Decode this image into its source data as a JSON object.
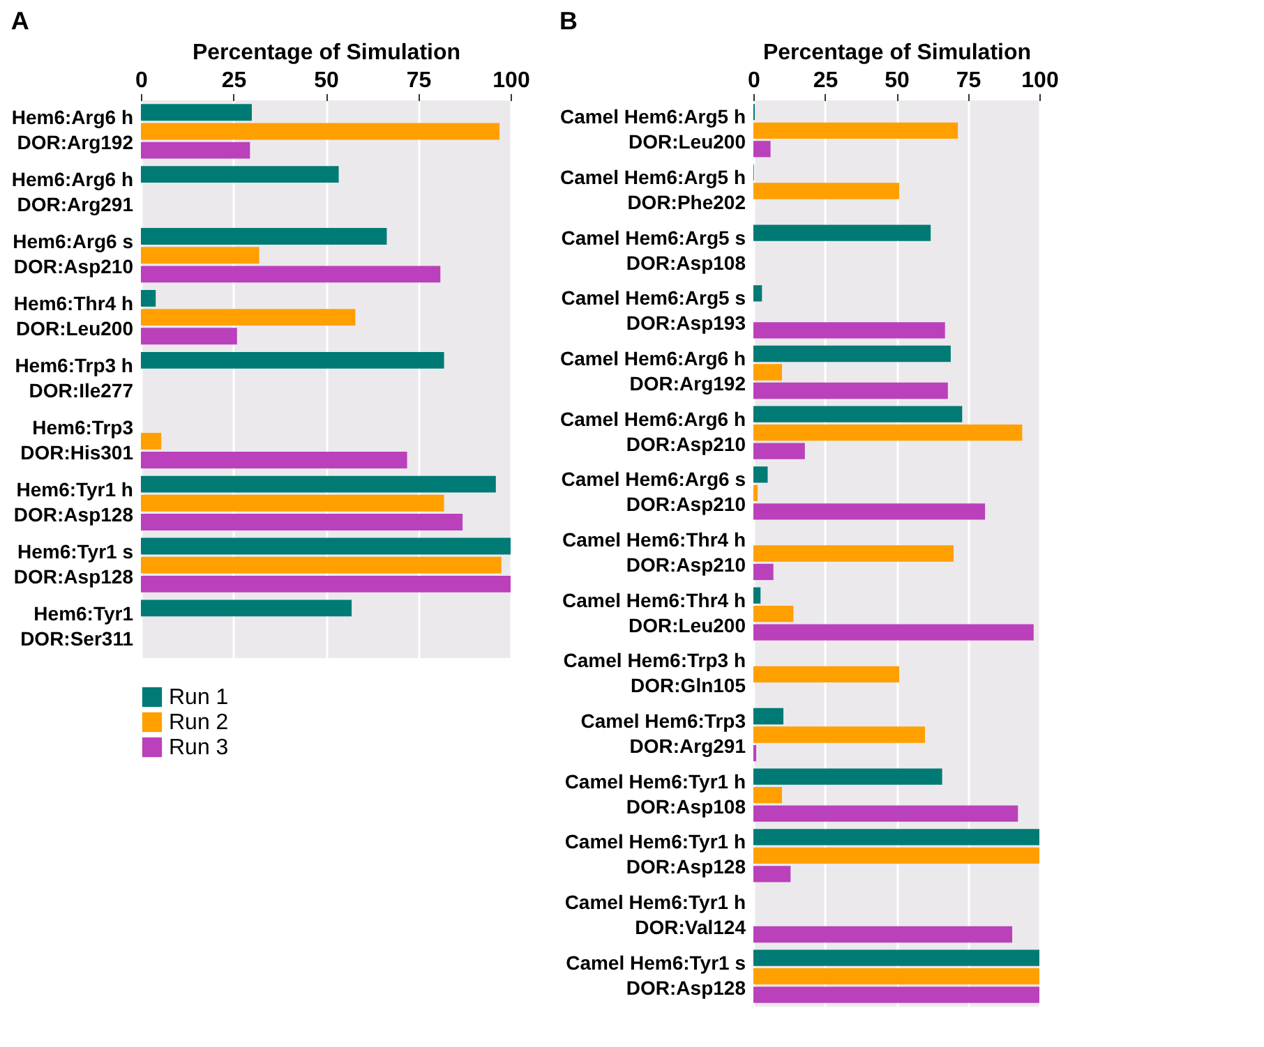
{
  "chart_data": [
    {
      "type": "bar",
      "orientation": "horizontal",
      "title": "A",
      "xlabel": "Percentage of Simulation",
      "xlim": [
        0,
        100
      ],
      "xticks": [
        0,
        25,
        50,
        75,
        100
      ],
      "grid": "x",
      "legend": "bottom",
      "categories": [
        "Hem6:Arg6 h\nDOR:Arg192",
        "Hem6:Arg6 h\nDOR:Arg291",
        "Hem6:Arg6 s\nDOR:Asp210",
        "Hem6:Thr4 h\nDOR:Leu200",
        "Hem6:Trp3 h\nDOR:Ile277",
        "Hem6:Trp3\nDOR:His301",
        "Hem6:Tyr1 h\nDOR:Asp128",
        "Hem6:Tyr1 s\nDOR:Asp128",
        "Hem6:Tyr1\nDOR:Ser311"
      ],
      "series": [
        {
          "name": "Run 1",
          "color": "#007a74",
          "values": [
            30,
            53.5,
            66.5,
            4,
            82,
            null,
            96,
            100,
            57
          ]
        },
        {
          "name": "Run 2",
          "color": "#ffa000",
          "values": [
            97,
            null,
            32,
            58,
            null,
            5.5,
            82,
            97.5,
            null
          ]
        },
        {
          "name": "Run 3",
          "color": "#bb40bb",
          "values": [
            29.5,
            null,
            81,
            26,
            null,
            72,
            87,
            100,
            null
          ]
        }
      ]
    },
    {
      "type": "bar",
      "orientation": "horizontal",
      "title": "B",
      "xlabel": "Percentage of Simulation",
      "xlim": [
        0,
        100
      ],
      "xticks": [
        0,
        25,
        50,
        75,
        100
      ],
      "grid": "x",
      "categories": [
        "Camel Hem6:Arg5 h\nDOR:Leu200",
        "Camel Hem6:Arg5 h\nDOR:Phe202",
        "Camel Hem6:Arg5 s\nDOR:Asp108",
        "Camel Hem6:Arg5 s\nDOR:Asp193",
        "Camel Hem6:Arg6 h\nDOR:Arg192",
        "Camel Hem6:Arg6 h\nDOR:Asp210",
        "Camel Hem6:Arg6 s\nDOR:Asp210",
        "Camel Hem6:Thr4 h\nDOR:Asp210",
        "Camel Hem6:Thr4 h\nDOR:Leu200",
        "Camel Hem6:Trp3 h\nDOR:Gln105",
        "Camel Hem6:Trp3\nDOR:Arg291",
        "Camel Hem6:Tyr1 h\nDOR:Asp108",
        "Camel Hem6:Tyr1 h\nDOR:Asp128",
        "Camel Hem6:Tyr1 h\nDOR:Val124",
        "Camel Hem6:Tyr1 s\nDOR:Asp128"
      ],
      "series": [
        {
          "color": "#007a74",
          "values": [
            0.5,
            0.2,
            62,
            3,
            69,
            73,
            5,
            null,
            2.5,
            null,
            10.5,
            66,
            100,
            null,
            100
          ]
        },
        {
          "color": "#ffa000",
          "values": [
            71.5,
            51,
            null,
            null,
            10,
            94,
            1.5,
            70,
            14,
            51,
            60,
            10,
            100,
            null,
            100
          ]
        },
        {
          "color": "#bb40bb",
          "values": [
            6,
            null,
            null,
            67,
            68,
            18,
            81,
            7,
            98,
            null,
            1,
            92.5,
            13,
            90.5,
            100
          ]
        }
      ]
    }
  ]
}
